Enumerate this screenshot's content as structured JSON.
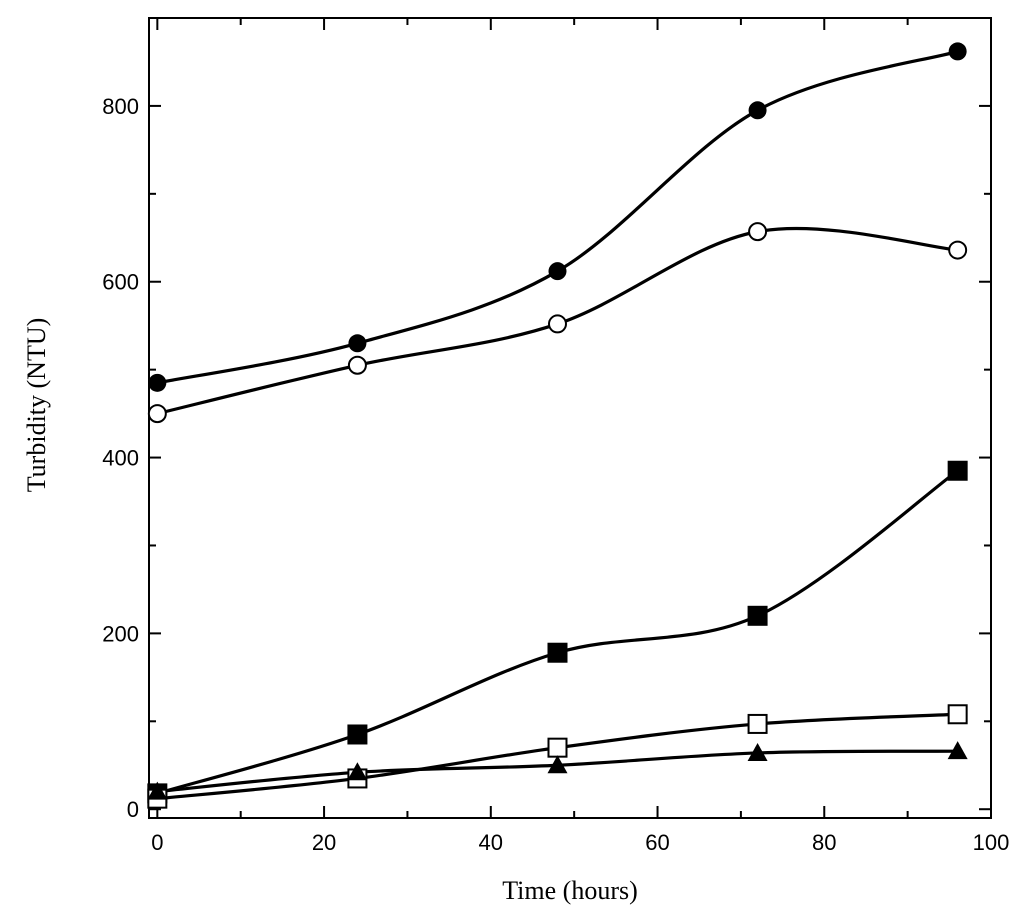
{
  "chart_data": {
    "type": "line",
    "title": "",
    "xlabel": "Time (hours)",
    "ylabel": "Turbidity (NTU)",
    "xlim": [
      -1,
      100
    ],
    "ylim": [
      -10,
      900
    ],
    "x_ticks": [
      0,
      20,
      40,
      60,
      80,
      100
    ],
    "y_ticks": [
      0,
      200,
      400,
      600,
      800
    ],
    "x_tick_labels": [
      "0",
      "20",
      "40",
      "60",
      "80",
      "100"
    ],
    "y_tick_labels": [
      "0",
      "200",
      "400",
      "600",
      "800"
    ],
    "grid": false,
    "legend": "none",
    "series": [
      {
        "marker": "filled-circle",
        "color": "#000000",
        "x": [
          0,
          24,
          48,
          72,
          96
        ],
        "y": [
          485,
          530,
          612,
          795,
          862
        ]
      },
      {
        "marker": "open-circle",
        "color": "#000000",
        "x": [
          0,
          24,
          48,
          72,
          96
        ],
        "y": [
          450,
          505,
          552,
          657,
          636
        ]
      },
      {
        "marker": "filled-square",
        "color": "#000000",
        "x": [
          0,
          24,
          48,
          72,
          96
        ],
        "y": [
          18,
          85,
          178,
          220,
          385
        ]
      },
      {
        "marker": "open-square",
        "color": "#000000",
        "x": [
          0,
          24,
          48,
          72,
          96
        ],
        "y": [
          12,
          35,
          70,
          97,
          108
        ]
      },
      {
        "marker": "filled-triangle",
        "color": "#000000",
        "x": [
          0,
          24,
          48,
          72,
          96
        ],
        "y": [
          20,
          42,
          50,
          64,
          66
        ]
      }
    ]
  }
}
